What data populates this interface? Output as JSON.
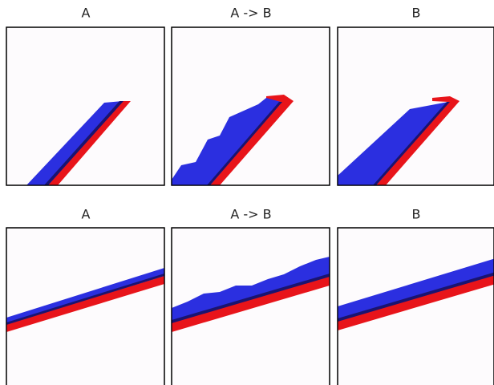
{
  "panels": [
    {
      "title": "A"
    },
    {
      "title": "A -> B"
    },
    {
      "title": "B"
    },
    {
      "title": "A"
    },
    {
      "title": "A -> B"
    },
    {
      "title": "B"
    }
  ]
}
